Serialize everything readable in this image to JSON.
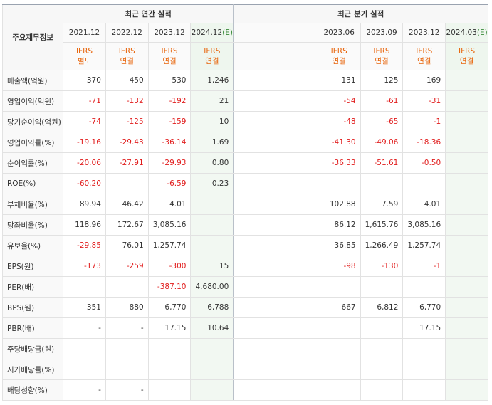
{
  "top_right": "( )",
  "header": {
    "row_header": "주요재무정보",
    "annual_title": "최근 연간 실적",
    "quarter_title": "최근 분기 실적",
    "annual_periods": [
      "2021.12",
      "2022.12",
      "2023.12",
      "2024.12"
    ],
    "quarter_periods": [
      "2023.06",
      "2023.09",
      "2023.12",
      "2024.03"
    ],
    "estimate_mark": "(E)",
    "ifrs_label": "IFRS",
    "annual_basis": [
      "별도",
      "연결",
      "연결",
      "연결"
    ],
    "quarter_basis": [
      "연결",
      "연결",
      "연결",
      "연결"
    ]
  },
  "rows": [
    {
      "label": "매출액(억원)",
      "annual": [
        "370",
        "450",
        "530",
        "1,246"
      ],
      "quarter": [
        "131",
        "125",
        "169",
        ""
      ]
    },
    {
      "label": "영업이익(억원)",
      "annual": [
        "-71",
        "-132",
        "-192",
        "21"
      ],
      "quarter": [
        "-54",
        "-61",
        "-31",
        ""
      ]
    },
    {
      "label": "당기순이익(억원)",
      "annual": [
        "-74",
        "-125",
        "-159",
        "10"
      ],
      "quarter": [
        "-48",
        "-65",
        "-1",
        ""
      ]
    },
    {
      "label": "영업이익률(%)",
      "annual": [
        "-19.16",
        "-29.43",
        "-36.14",
        "1.69"
      ],
      "quarter": [
        "-41.30",
        "-49.06",
        "-18.36",
        ""
      ]
    },
    {
      "label": "순이익률(%)",
      "annual": [
        "-20.06",
        "-27.91",
        "-29.93",
        "0.80"
      ],
      "quarter": [
        "-36.33",
        "-51.61",
        "-0.50",
        ""
      ]
    },
    {
      "label": "ROE(%)",
      "annual": [
        "-60.20",
        "",
        "-6.59",
        "0.23"
      ],
      "quarter": [
        "",
        "",
        "",
        ""
      ]
    },
    {
      "label": "부채비율(%)",
      "annual": [
        "89.94",
        "46.42",
        "4.01",
        ""
      ],
      "quarter": [
        "102.88",
        "7.59",
        "4.01",
        ""
      ]
    },
    {
      "label": "당좌비율(%)",
      "annual": [
        "118.96",
        "172.67",
        "3,085.16",
        ""
      ],
      "quarter": [
        "86.12",
        "1,615.76",
        "3,085.16",
        ""
      ]
    },
    {
      "label": "유보율(%)",
      "annual": [
        "-29.85",
        "76.01",
        "1,257.74",
        ""
      ],
      "quarter": [
        "36.85",
        "1,266.49",
        "1,257.74",
        ""
      ]
    },
    {
      "label": "EPS(원)",
      "annual": [
        "-173",
        "-259",
        "-300",
        "15"
      ],
      "quarter": [
        "-98",
        "-130",
        "-1",
        ""
      ]
    },
    {
      "label": "PER(배)",
      "annual": [
        "",
        "",
        "-387.10",
        "4,680.00"
      ],
      "quarter": [
        "",
        "",
        "",
        ""
      ]
    },
    {
      "label": "BPS(원)",
      "annual": [
        "351",
        "880",
        "6,770",
        "6,788"
      ],
      "quarter": [
        "667",
        "6,812",
        "6,770",
        ""
      ]
    },
    {
      "label": "PBR(배)",
      "annual": [
        "-",
        "-",
        "17.15",
        "10.64"
      ],
      "quarter": [
        "",
        "",
        "17.15",
        ""
      ]
    },
    {
      "label": "주당배당금(원)",
      "annual": [
        "",
        "",
        "",
        ""
      ],
      "quarter": [
        "",
        "",
        "",
        ""
      ]
    },
    {
      "label": "시가배당률(%)",
      "annual": [
        "",
        "",
        "",
        ""
      ],
      "quarter": [
        "",
        "",
        "",
        ""
      ]
    },
    {
      "label": "배당성향(%)",
      "annual": [
        "-",
        "-",
        "",
        ""
      ],
      "quarter": [
        "",
        "",
        "",
        ""
      ]
    }
  ]
}
